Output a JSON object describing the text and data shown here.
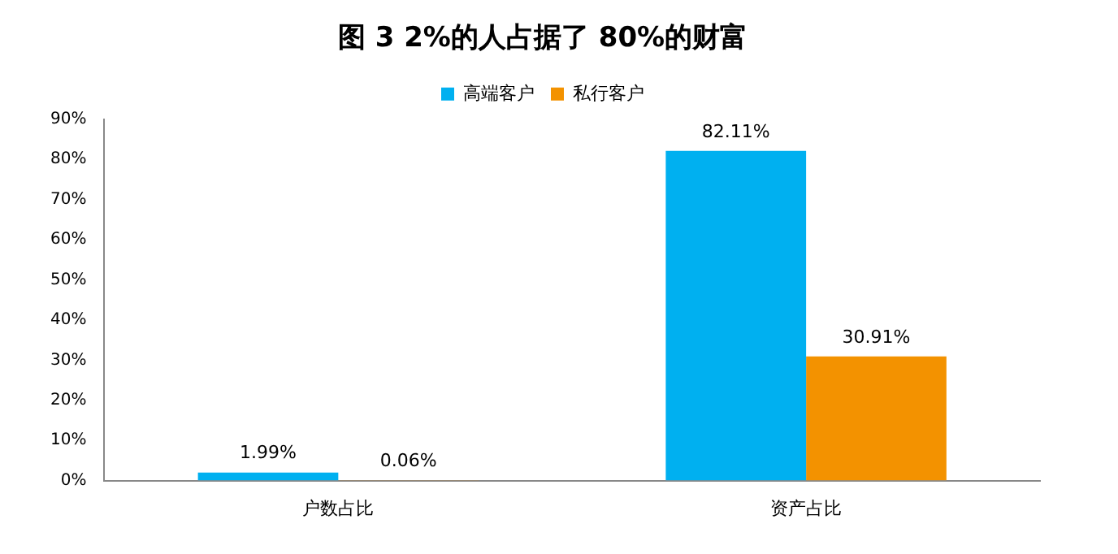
{
  "chart_data": {
    "type": "bar",
    "title": "图 3 2%的人占据了 80%的财富",
    "categories": [
      "户数占比",
      "资产占比"
    ],
    "series": [
      {
        "name": "高端客户",
        "color": "#00b0f0",
        "values": [
          1.99,
          82.11
        ],
        "value_labels": [
          "1.99%",
          "82.11%"
        ]
      },
      {
        "name": "私行客户",
        "color": "#f39200",
        "values": [
          0.06,
          30.91
        ],
        "value_labels": [
          "0.06%",
          "30.91%"
        ]
      }
    ],
    "ylim": [
      0,
      90
    ],
    "yticks": [
      {
        "value": 0,
        "label": "0%"
      },
      {
        "value": 10,
        "label": "10%"
      },
      {
        "value": 20,
        "label": "20%"
      },
      {
        "value": 30,
        "label": "30%"
      },
      {
        "value": 40,
        "label": "40%"
      },
      {
        "value": 50,
        "label": "50%"
      },
      {
        "value": 60,
        "label": "60%"
      },
      {
        "value": 70,
        "label": "70%"
      },
      {
        "value": 80,
        "label": "80%"
      },
      {
        "value": 90,
        "label": "90%"
      }
    ],
    "grid": false,
    "legend": "top"
  }
}
